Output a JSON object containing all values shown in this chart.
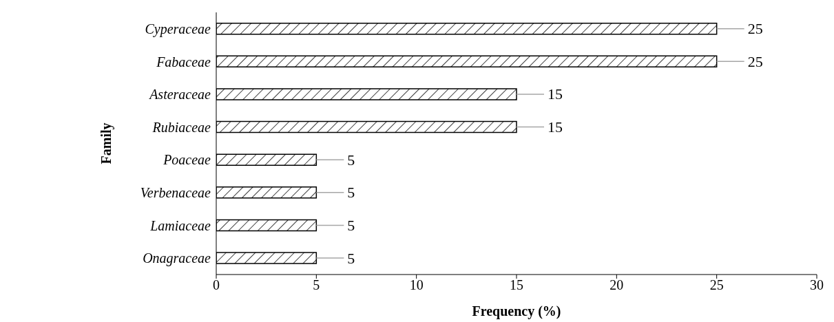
{
  "chart_data": {
    "type": "bar",
    "orientation": "horizontal",
    "xlabel": "Frequency (%)",
    "ylabel": "Family",
    "categories": [
      "Cyperaceae",
      "Fabaceae",
      "Asteraceae",
      "Rubiaceae",
      "Poaceae",
      "Verbenaceae",
      "Lamiaceae",
      "Onagraceae"
    ],
    "values": [
      25,
      25,
      15,
      15,
      5,
      5,
      5,
      5
    ],
    "color": "#000000",
    "xlim": [
      0,
      30
    ],
    "xticks": [
      0,
      5,
      10,
      15,
      20,
      25,
      30
    ],
    "grid": false,
    "legend": false,
    "data_labels": true
  }
}
